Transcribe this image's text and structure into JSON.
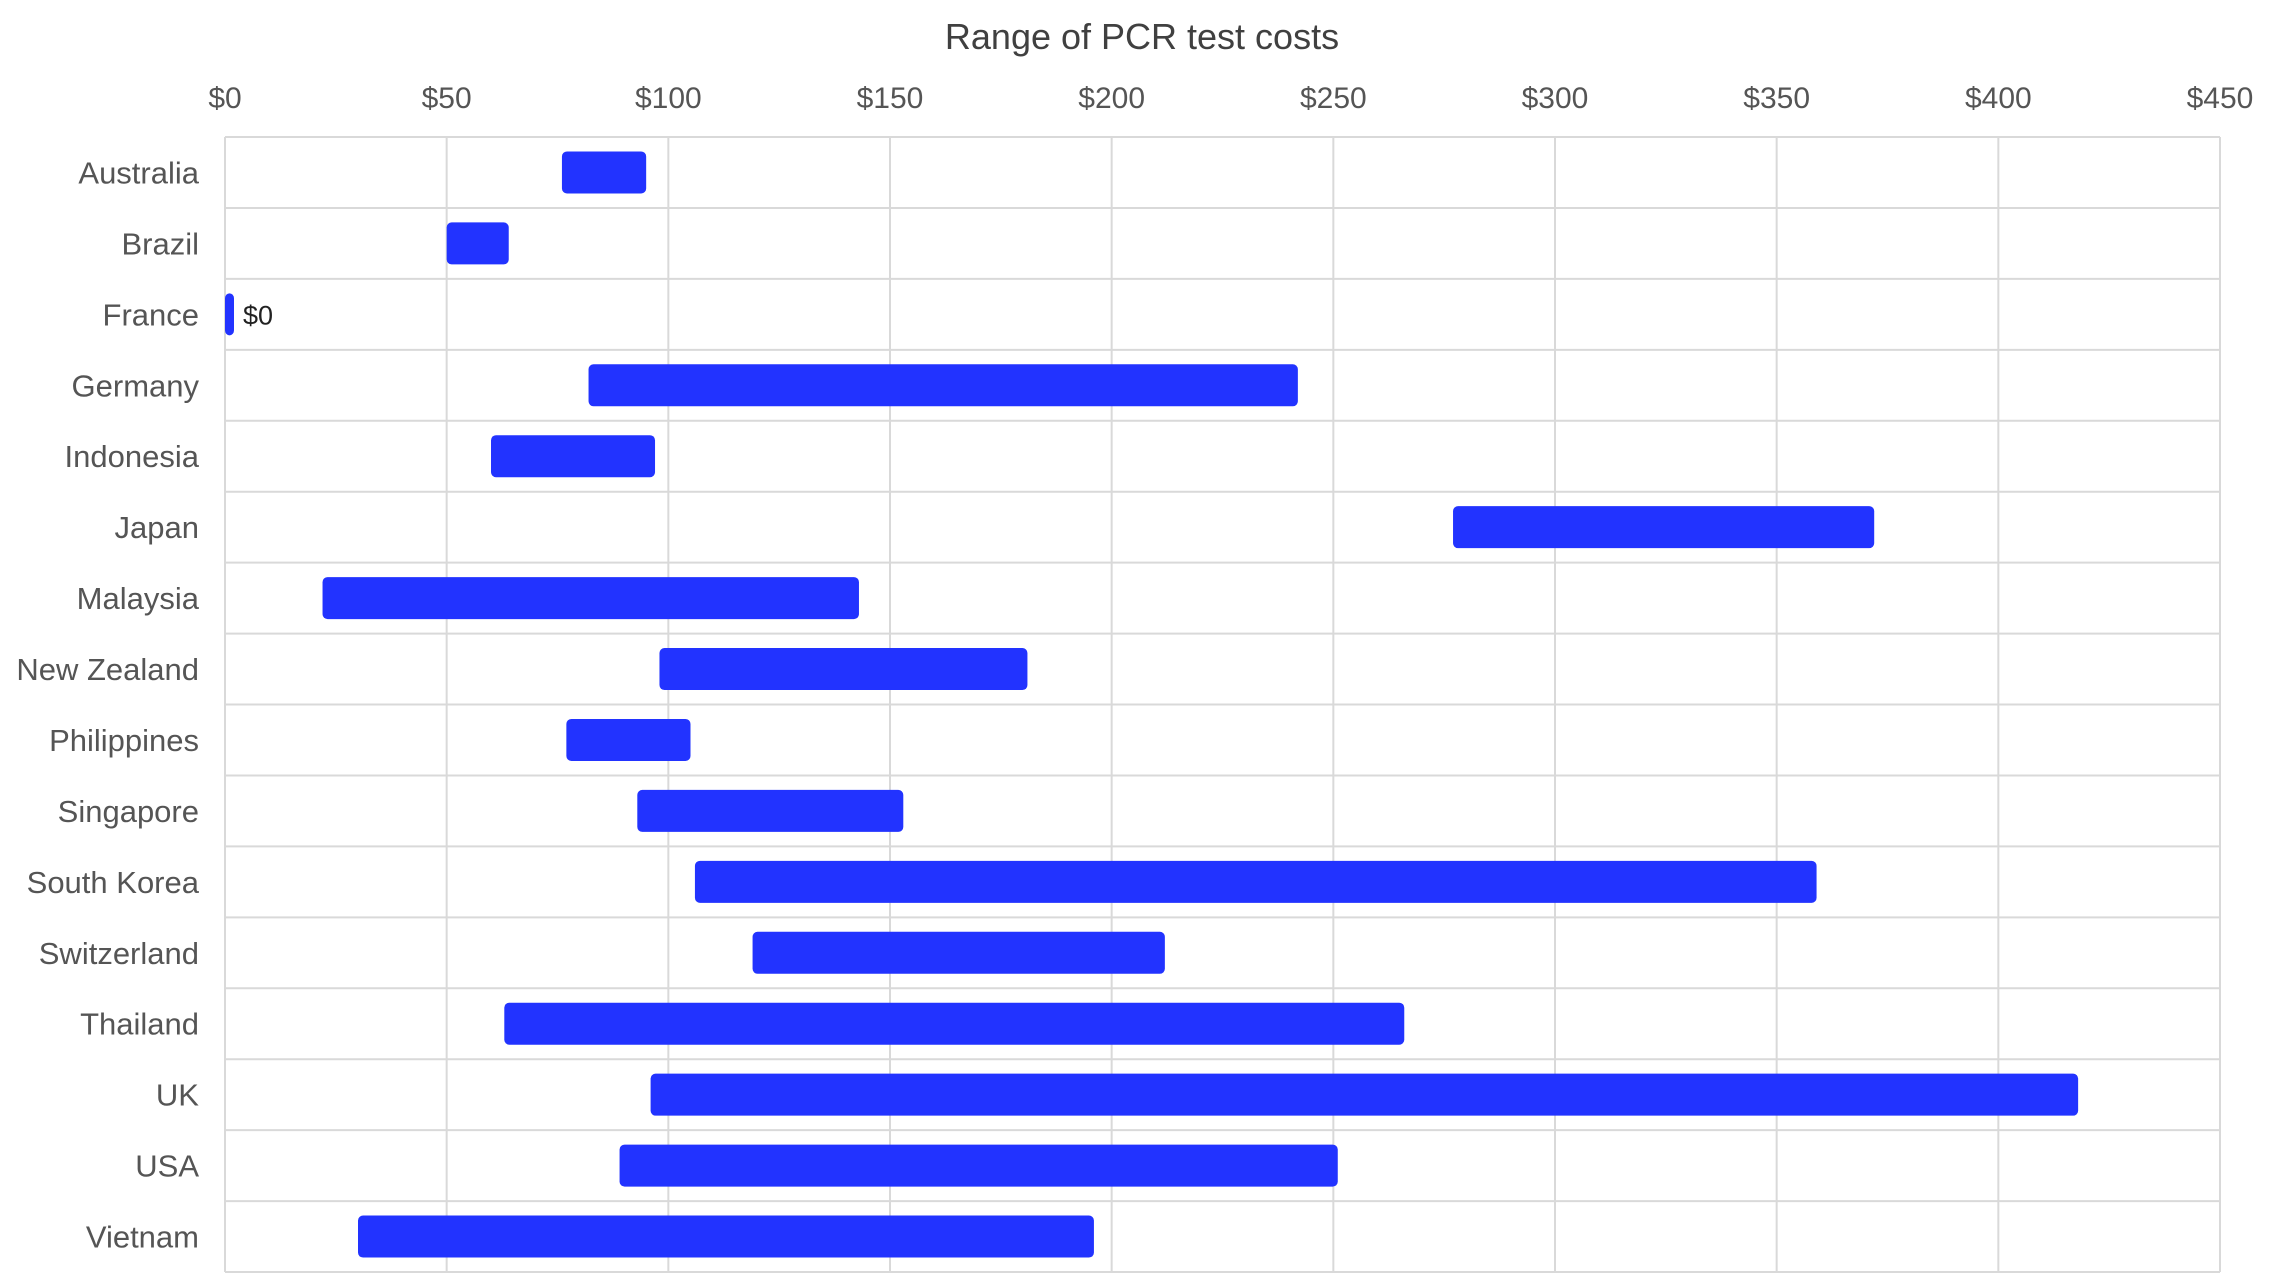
{
  "chart_data": {
    "type": "bar",
    "orientation": "horizontal-range",
    "title": "Range of PCR test costs",
    "xlabel": "",
    "ylabel": "",
    "xlim": [
      0,
      450
    ],
    "x_ticks": [
      "$0",
      "$50",
      "$100",
      "$150",
      "$200",
      "$250",
      "$300",
      "$350",
      "$400",
      "$450"
    ],
    "x_axis_position": "top",
    "grid": true,
    "legend": "none",
    "bar_color": "#2233ff",
    "categories": [
      "Australia",
      "Brazil",
      "France",
      "Germany",
      "Indonesia",
      "Japan",
      "Malaysia",
      "New Zealand",
      "Philippines",
      "Singapore",
      "South Korea",
      "Switzerland",
      "Thailand",
      "UK",
      "USA",
      "Vietnam"
    ],
    "series": [
      {
        "low": [
          76,
          50,
          0,
          82,
          60,
          277,
          22,
          98,
          77,
          93,
          106,
          119,
          63,
          96,
          89,
          30
        ],
        "high": [
          95,
          64,
          1,
          242,
          97,
          372,
          143,
          181,
          105,
          153,
          359,
          212,
          266,
          418,
          251,
          196
        ]
      }
    ],
    "annotations": [
      {
        "category": "France",
        "text": "$0"
      }
    ]
  }
}
